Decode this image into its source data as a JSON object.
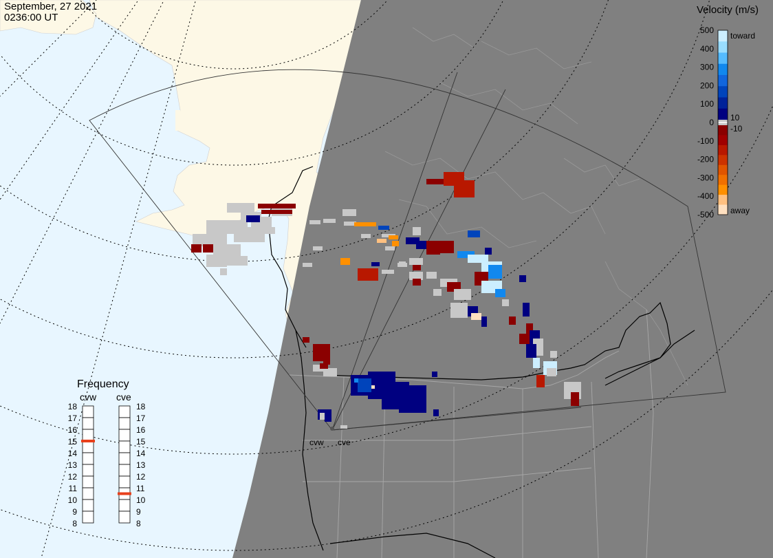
{
  "header": {
    "date": "September, 27 2021",
    "time": "0236:00 UT"
  },
  "velocity_scale": {
    "title": "Velocity (m/s)",
    "ticks": [
      "500",
      "400",
      "300",
      "200",
      "100",
      "0",
      "-100",
      "-200",
      "-300",
      "-400",
      "-500"
    ],
    "label_toward": "toward",
    "label_away": "away",
    "label_pos10": "10",
    "label_neg10": "-10",
    "colors_toward": [
      "#cceeff",
      "#99ddff",
      "#55bbff",
      "#1188ee",
      "#1166dd",
      "#0044bb",
      "#002299",
      "#000080"
    ],
    "colors_away": [
      "#8b0000",
      "#a00000",
      "#b81800",
      "#cc3300",
      "#e05500",
      "#f07000",
      "#ff9000",
      "#ffc080",
      "#ffe0c0"
    ],
    "ground_scatter_color": "#c8c8c8"
  },
  "frequency": {
    "title": "Frequency",
    "radars": [
      {
        "name": "cvw",
        "value_mhz": 15
      },
      {
        "name": "cve",
        "value_mhz": 10.5
      }
    ],
    "scale": [
      "18",
      "17",
      "16",
      "15",
      "14",
      "13",
      "12",
      "11",
      "10",
      "9",
      "8"
    ]
  },
  "sites": [
    {
      "name": "cvw"
    },
    {
      "name": "cve"
    }
  ],
  "map_colors": {
    "ocean_day": "#e8f6ff",
    "land_day": "#fdf8e6",
    "night": "#808080"
  }
}
